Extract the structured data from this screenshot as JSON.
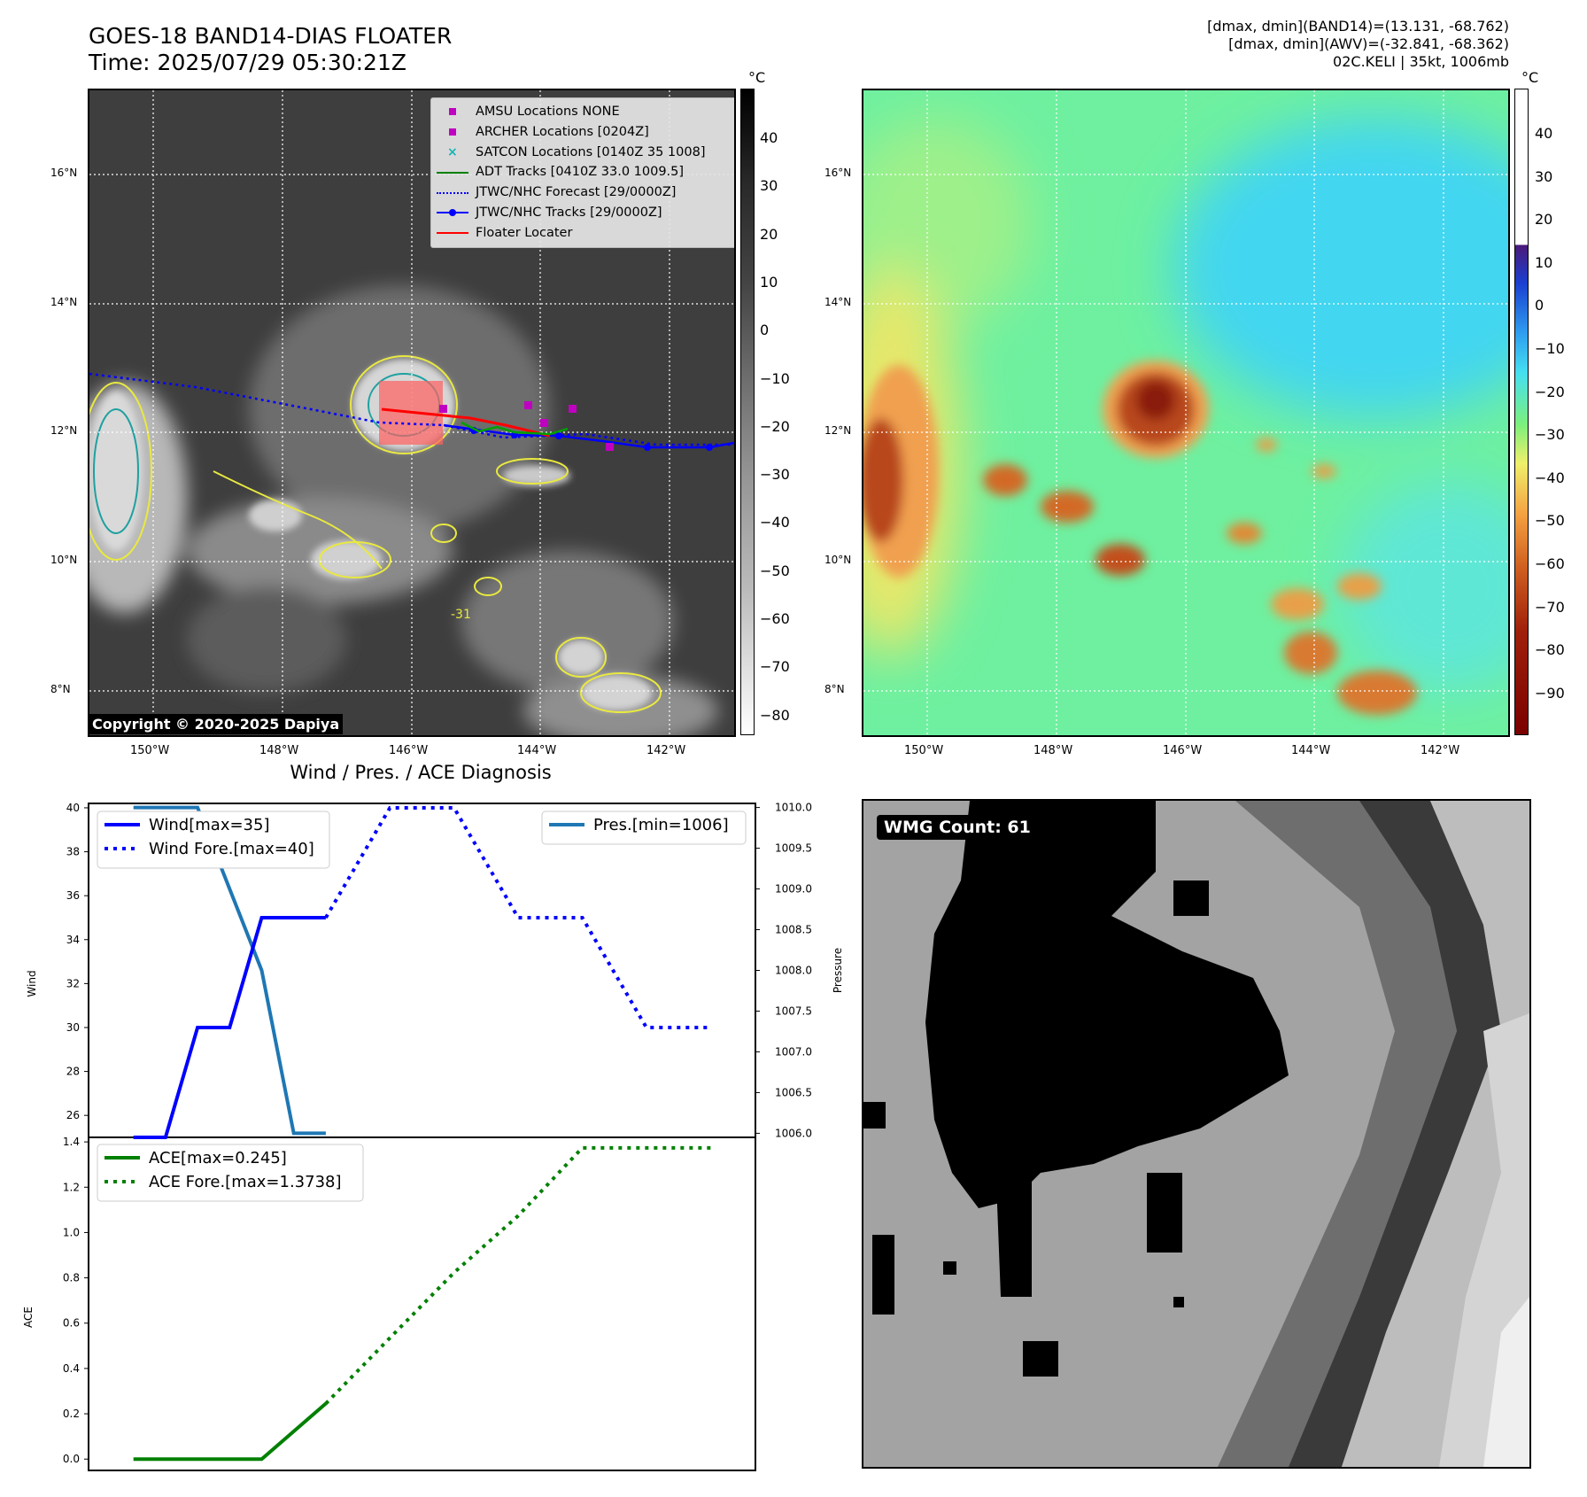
{
  "header": {
    "title_line1": "GOES-18 BAND14-DIAS FLOATER",
    "title_line2": "Time: 2025/07/29 05:30:21Z",
    "stats_line1": "[dmax, dmin](BAND14)=(13.131, -68.762)",
    "stats_line2": "[dmax, dmin](AWV)=(-32.841, -68.362)",
    "stats_line3": "02C.KELI | 35kt, 1006mb"
  },
  "map": {
    "lat_labels": [
      "16°N",
      "14°N",
      "12°N",
      "10°N",
      "8°N"
    ],
    "lon_labels": [
      "150°W",
      "148°W",
      "146°W",
      "144°W",
      "142°W"
    ],
    "copyright": "Copyright © 2020-2025 Dapiya",
    "contour_label": "-31",
    "legend": [
      {
        "label": "AMSU Locations NONE",
        "marker": "square",
        "color": "#c000c0"
      },
      {
        "label": "ARCHER Locations [0204Z]",
        "marker": "square",
        "color": "#c000c0"
      },
      {
        "label": "SATCON Locations [0140Z 35 1008]",
        "marker": "x",
        "color": "#17b3b3"
      },
      {
        "label": "ADT Tracks [0410Z 33.0 1009.5]",
        "marker": "line",
        "color": "#008000"
      },
      {
        "label": "JTWC/NHC Forecast [29/0000Z]",
        "marker": "dotted",
        "color": "#0000ff"
      },
      {
        "label": "JTWC/NHC Tracks [29/0000Z]",
        "marker": "line-dot",
        "color": "#0000ff"
      },
      {
        "label": "Floater Locater",
        "marker": "line",
        "color": "#ff0000"
      }
    ]
  },
  "colorbar_ir": {
    "unit": "°C",
    "ticks": [
      "40",
      "30",
      "20",
      "10",
      "0",
      "−10",
      "−20",
      "−30",
      "−40",
      "−50",
      "−60",
      "−70",
      "−80"
    ]
  },
  "colorbar_wv": {
    "unit": "°C",
    "ticks": [
      "40",
      "30",
      "20",
      "10",
      "0",
      "−10",
      "−20",
      "−30",
      "−40",
      "−50",
      "−60",
      "−70",
      "−80",
      "−90"
    ]
  },
  "wmg": {
    "label": "WMG Count: 61"
  },
  "chart_data": [
    {
      "type": "line",
      "title": "Wind / Pres. / ACE Diagnosis",
      "ylabel": "Wind",
      "y2label": "Pressure",
      "ylim": [
        25,
        40.2
      ],
      "y2lim": [
        1005.95,
        1010.05
      ],
      "yticks": [
        "26",
        "28",
        "30",
        "32",
        "34",
        "36",
        "38",
        "40"
      ],
      "y2ticks": [
        "1006.0",
        "1006.5",
        "1007.0",
        "1007.5",
        "1008.0",
        "1008.5",
        "1009.0",
        "1009.5",
        "1010.0"
      ],
      "series": [
        {
          "name": "Wind[max=35]",
          "style": "solid",
          "color": "#0000ff",
          "x": [
            0,
            1,
            2,
            3,
            4,
            5,
            6
          ],
          "values": [
            25,
            25,
            30,
            30,
            35,
            35,
            35
          ]
        },
        {
          "name": "Wind Fore.[max=40]",
          "style": "dotted",
          "color": "#0000ff",
          "x": [
            6,
            8,
            10,
            12,
            14,
            16,
            18
          ],
          "values": [
            35,
            40,
            40,
            35,
            35,
            30,
            30
          ]
        },
        {
          "name": "Pres.[min=1006]",
          "style": "solid",
          "color": "#1f77b4",
          "axis": "right",
          "x": [
            0,
            2,
            4,
            5,
            6
          ],
          "values": [
            1010,
            1010,
            1008,
            1006,
            1006
          ]
        }
      ]
    },
    {
      "type": "line",
      "ylabel": "ACE",
      "ylim": [
        -0.05,
        1.42
      ],
      "yticks": [
        "0.0",
        "0.2",
        "0.4",
        "0.6",
        "0.8",
        "1.0",
        "1.2",
        "1.4"
      ],
      "series": [
        {
          "name": "ACE[max=0.245]",
          "style": "solid",
          "color": "#008000",
          "x": [
            0,
            1,
            2,
            3,
            4,
            5,
            6
          ],
          "values": [
            0,
            0,
            0,
            0,
            0,
            0.1225,
            0.245
          ]
        },
        {
          "name": "ACE Fore.[max=1.3738]",
          "style": "dotted",
          "color": "#008000",
          "x": [
            6,
            8,
            10,
            12,
            14,
            16,
            18
          ],
          "values": [
            0.245,
            0.535,
            0.823,
            1.074,
            1.3738,
            1.3738,
            1.3738
          ]
        }
      ]
    }
  ]
}
